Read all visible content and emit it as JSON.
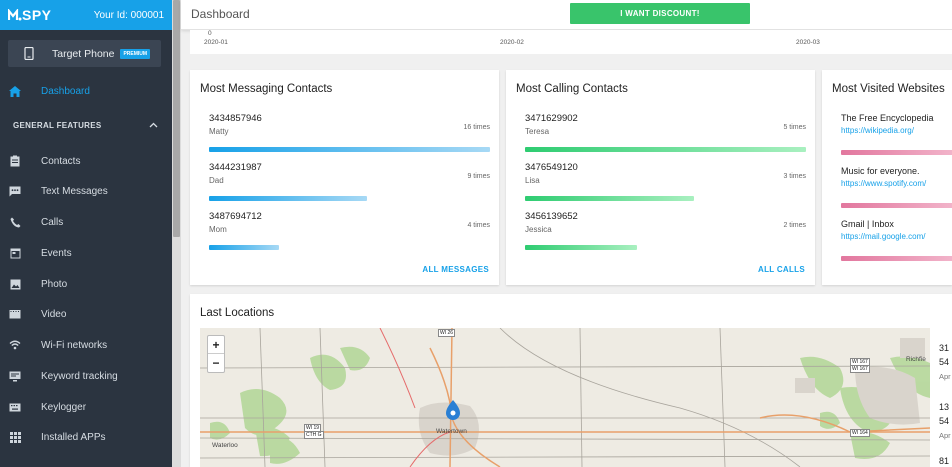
{
  "app": {
    "logo": "SPY",
    "user_id": "Your Id: 000001"
  },
  "target": {
    "label": "Target Phone",
    "badge": "PREMIUM"
  },
  "nav": {
    "dashboard": "Dashboard",
    "section": "GENERAL FEATURES",
    "items": [
      {
        "label": "Contacts",
        "icon": "contacts-icon"
      },
      {
        "label": "Text Messages",
        "icon": "message-icon"
      },
      {
        "label": "Calls",
        "icon": "phone-icon"
      },
      {
        "label": "Events",
        "icon": "calendar-icon"
      },
      {
        "label": "Photo",
        "icon": "photo-icon"
      },
      {
        "label": "Video",
        "icon": "video-icon"
      },
      {
        "label": "Wi-Fi networks",
        "icon": "wifi-icon"
      },
      {
        "label": "Keyword tracking",
        "icon": "keyword-icon"
      },
      {
        "label": "Keylogger",
        "icon": "keyboard-icon"
      },
      {
        "label": "Installed APPs",
        "icon": "apps-icon"
      }
    ]
  },
  "header": {
    "title": "Dashboard",
    "discount": "I WANT DISCOUNT!"
  },
  "chart_axis": {
    "zero": "0",
    "dates": [
      "2020-01",
      "2020-02",
      "2020-03"
    ]
  },
  "messaging": {
    "title": "Most Messaging Contacts",
    "link": "ALL MESSAGES",
    "contacts": [
      {
        "number": "3434857946",
        "name": "Matty",
        "times": "16 times",
        "count": 16
      },
      {
        "number": "3444231987",
        "name": "Dad",
        "times": "9 times",
        "count": 9
      },
      {
        "number": "3487694712",
        "name": "Mom",
        "times": "4 times",
        "count": 4
      }
    ]
  },
  "calling": {
    "title": "Most Calling Contacts",
    "link": "ALL CALLS",
    "contacts": [
      {
        "number": "3471629902",
        "name": "Teresa",
        "times": "5 times",
        "count": 5
      },
      {
        "number": "3476549120",
        "name": "Lisa",
        "times": "3 times",
        "count": 3
      },
      {
        "number": "3456139652",
        "name": "Jessica",
        "times": "2 times",
        "count": 2
      }
    ]
  },
  "websites": {
    "title": "Most Visited Websites",
    "sites": [
      {
        "title": "The Free Encyclopedia",
        "url": "https://wikipedia.org/"
      },
      {
        "title": "Music for everyone.",
        "url": "https://www.spotify.com/"
      },
      {
        "title": "Gmail | Inbox",
        "url": "https://mail.google.com/"
      }
    ]
  },
  "locations": {
    "title": "Last Locations",
    "map_labels": {
      "waterloo": "Waterloo",
      "watertown": "Watertown",
      "richfield": "Richfie"
    },
    "shields": [
      "WI 26",
      "WI 19",
      "CTH G",
      "WI 167",
      "WI 167",
      "WI 164"
    ],
    "side": [
      {
        "line1": "31",
        "line2": "54",
        "line3": "Apr"
      },
      {
        "line1": "13",
        "line2": "54",
        "line3": "Apr"
      },
      {
        "line1": "81",
        "line2": "",
        "line3": ""
      }
    ]
  },
  "colors": {
    "accent": "#17a1e8",
    "sidebar": "#2b3440",
    "green": "#39c46b",
    "pink": "#e2779e"
  }
}
